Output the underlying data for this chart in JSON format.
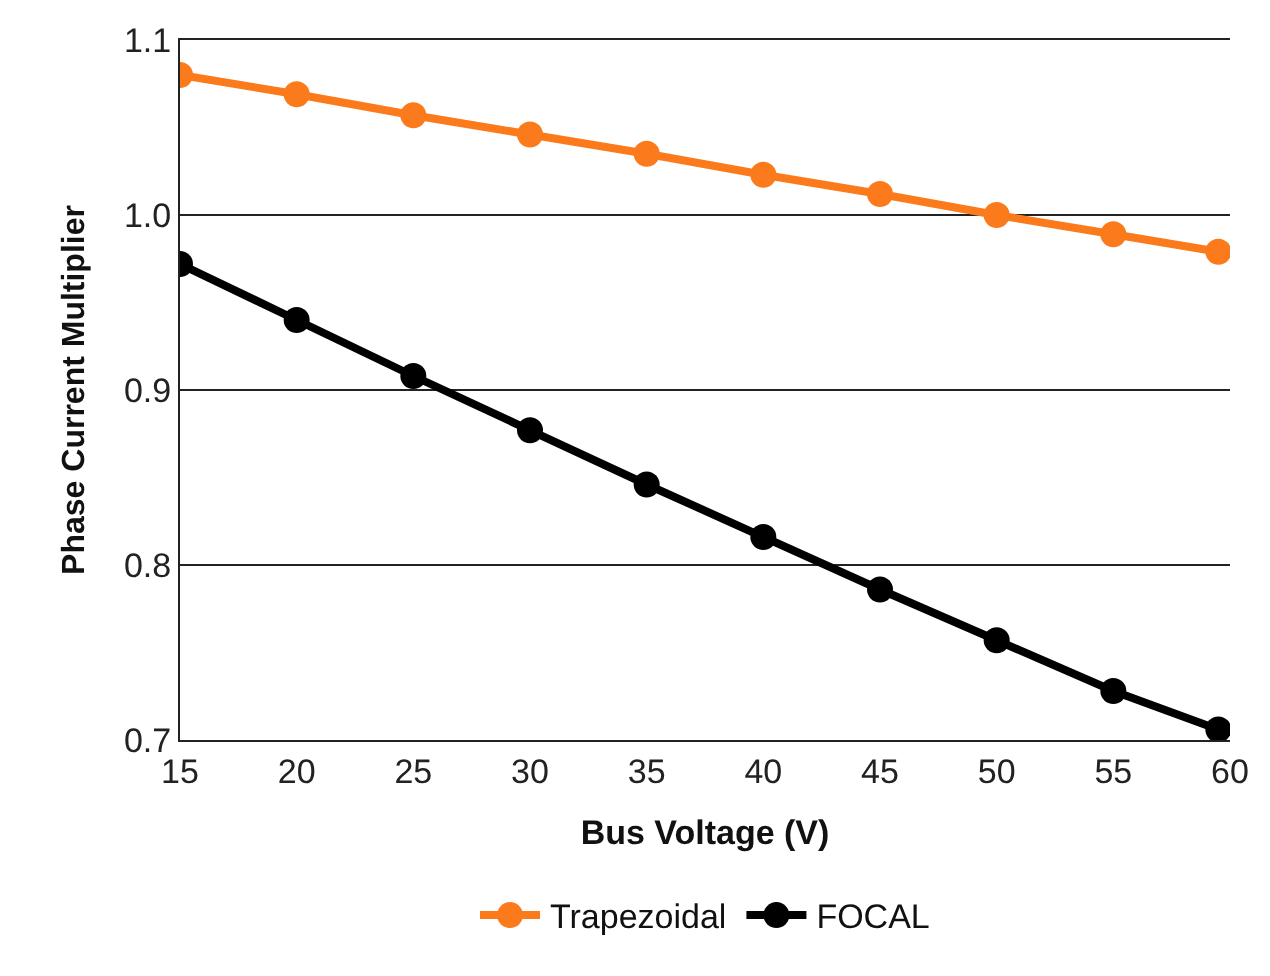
{
  "chart_data": {
    "type": "line",
    "xlabel": "Bus Voltage (V)",
    "ylabel": "Phase Current Multiplier",
    "x": [
      15,
      20,
      25,
      30,
      35,
      40,
      45,
      50,
      55,
      59.5
    ],
    "series": [
      {
        "name": "Trapezoidal",
        "color": "#fb7b1c",
        "values": [
          1.08,
          1.069,
          1.057,
          1.046,
          1.035,
          1.023,
          1.012,
          1.0,
          0.989,
          0.979
        ]
      },
      {
        "name": "FOCAL",
        "color": "#000000",
        "values": [
          0.972,
          0.94,
          0.908,
          0.877,
          0.846,
          0.816,
          0.786,
          0.757,
          0.728,
          0.706
        ]
      }
    ],
    "xlim": [
      15,
      60
    ],
    "xticks": [
      15,
      20,
      25,
      30,
      35,
      40,
      45,
      50,
      55,
      60
    ],
    "ylim": [
      0.7,
      1.1
    ],
    "yticks": [
      0.7,
      0.8,
      0.9,
      {
        "value": 1.0,
        "label": "1.0"
      },
      1.1
    ],
    "grid": "y",
    "legend": "bottom",
    "marker": "circle",
    "line_style": "solid"
  }
}
